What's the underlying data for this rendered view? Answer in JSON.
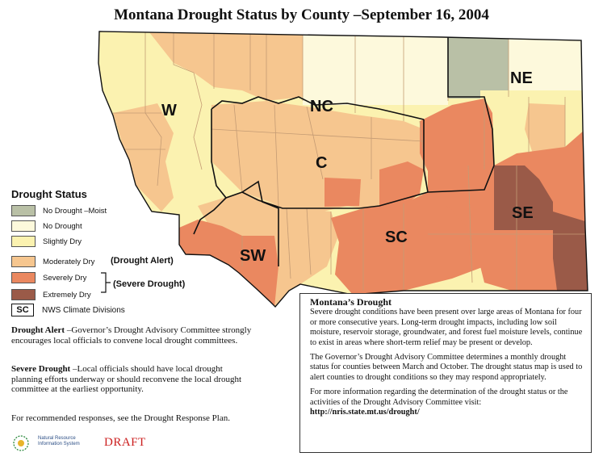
{
  "title": "Montana Drought Status by County –September 16, 2004",
  "colors": {
    "no_drought_moist": "#b9c0a6",
    "no_drought": "#fdf9dc",
    "slightly_dry": "#fbf2b0",
    "moderately_dry": "#f6c68f",
    "severely_dry": "#ea8860",
    "extremely_dry": "#9a5a48",
    "county_line": "#c8a27a",
    "division_line": "#111111"
  },
  "divisions": [
    "W",
    "NC",
    "NE",
    "C",
    "SW",
    "SC",
    "SE"
  ],
  "legend": {
    "title": "Drought Status",
    "items": [
      {
        "label": "No Drought –Moist",
        "color_key": "no_drought_moist"
      },
      {
        "label": "No Drought",
        "color_key": "no_drought"
      },
      {
        "label": "Slightly Dry",
        "color_key": "slightly_dry"
      },
      {
        "label": "Moderately Dry",
        "color_key": "moderately_dry"
      },
      {
        "label": "Severely Dry",
        "color_key": "severely_dry"
      },
      {
        "label": "Extremely Dry",
        "color_key": "extremely_dry"
      }
    ],
    "drought_alert": "(Drought Alert)",
    "severe_drought": "(Severe Drought)",
    "sc_box": "SC",
    "nws_label": "NWS Climate Divisions"
  },
  "notes": {
    "alert_term": "Drought Alert",
    "alert_text": " –Governor’s Drought Advisory Committee strongly encourages local officials to convene local drought committees.",
    "severe_term": "Severe Drought",
    "severe_text": " –Local officials should have local drought planning efforts underway or should reconvene the local drought committee at the earliest opportunity.",
    "response": "For recommended responses, see the Drought Response Plan."
  },
  "info_box": {
    "heading": "Montana’s Drought",
    "para1": "Severe drought conditions have been present over large areas of Montana for four or more consecutive years. Long-term drought impacts, including low soil moisture, reservoir storage, groundwater, and forest fuel moisture levels, continue to exist in areas where short-term relief may be present or develop.",
    "para2": "The Governor’s Drought Advisory Committee determines a monthly drought status for counties between March and October. The drought status map is used to alert counties to drought conditions so they may respond appropriately.",
    "para3": "For more information regarding the determination of the drought status or the activities of the Drought Advisory Committee visit:",
    "url": "http://nris.state.mt.us/drought/"
  },
  "draft_label": "DRAFT",
  "nris_logo_text": "Natural Resource Information System"
}
